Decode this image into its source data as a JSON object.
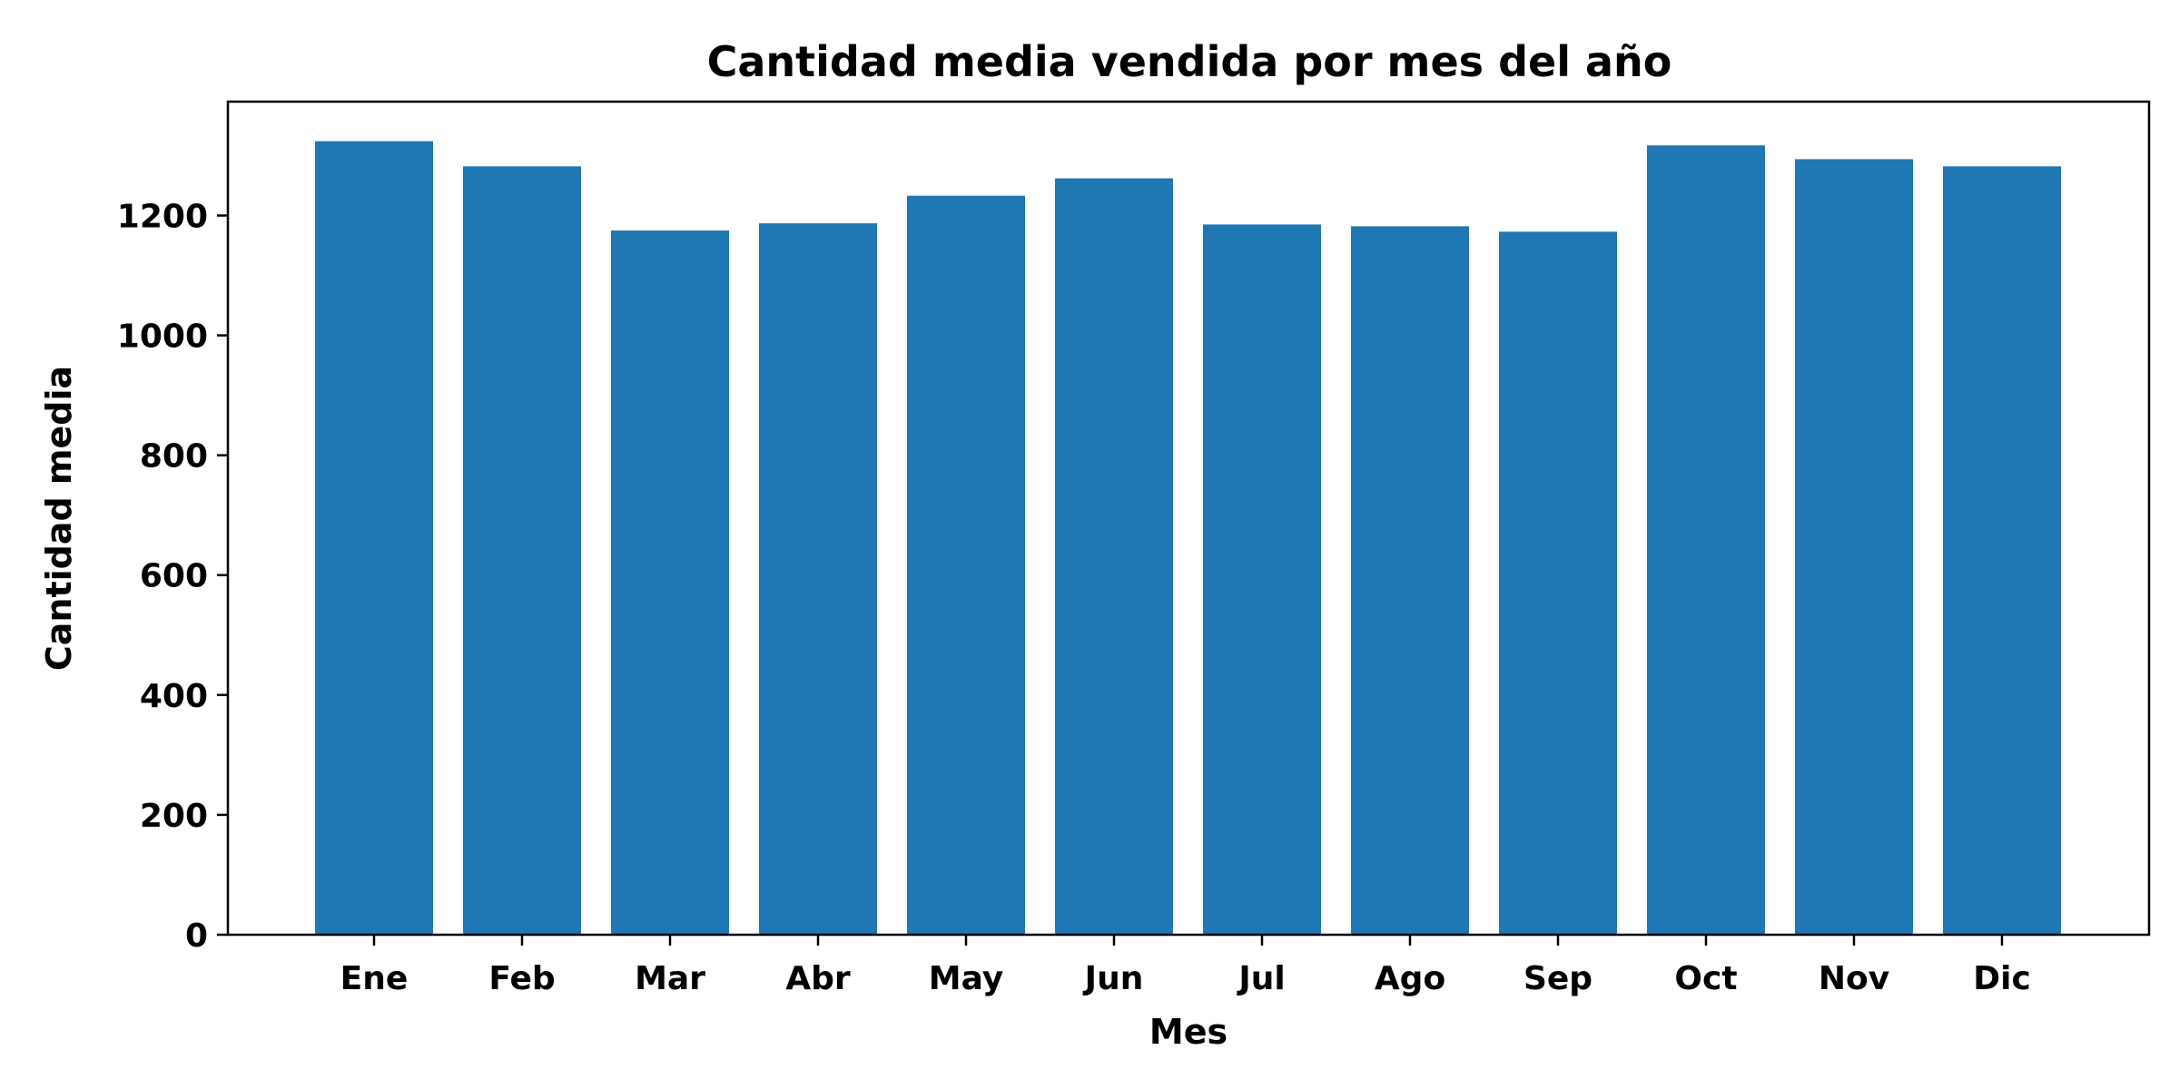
{
  "chart_data": {
    "type": "bar",
    "title": "Cantidad media vendida por mes del año",
    "xlabel": "Mes",
    "ylabel": "Cantidad media",
    "categories": [
      "Ene",
      "Feb",
      "Mar",
      "Abr",
      "May",
      "Jun",
      "Jul",
      "Ago",
      "Sep",
      "Oct",
      "Nov",
      "Dic"
    ],
    "values": [
      1324,
      1282,
      1175,
      1187,
      1233,
      1262,
      1185,
      1182,
      1173,
      1317,
      1294,
      1282
    ],
    "yticks": [
      0,
      200,
      400,
      600,
      800,
      1000,
      1200
    ],
    "ylim": [
      0,
      1390
    ],
    "bar_color": "#1f77b4",
    "grid": false
  }
}
